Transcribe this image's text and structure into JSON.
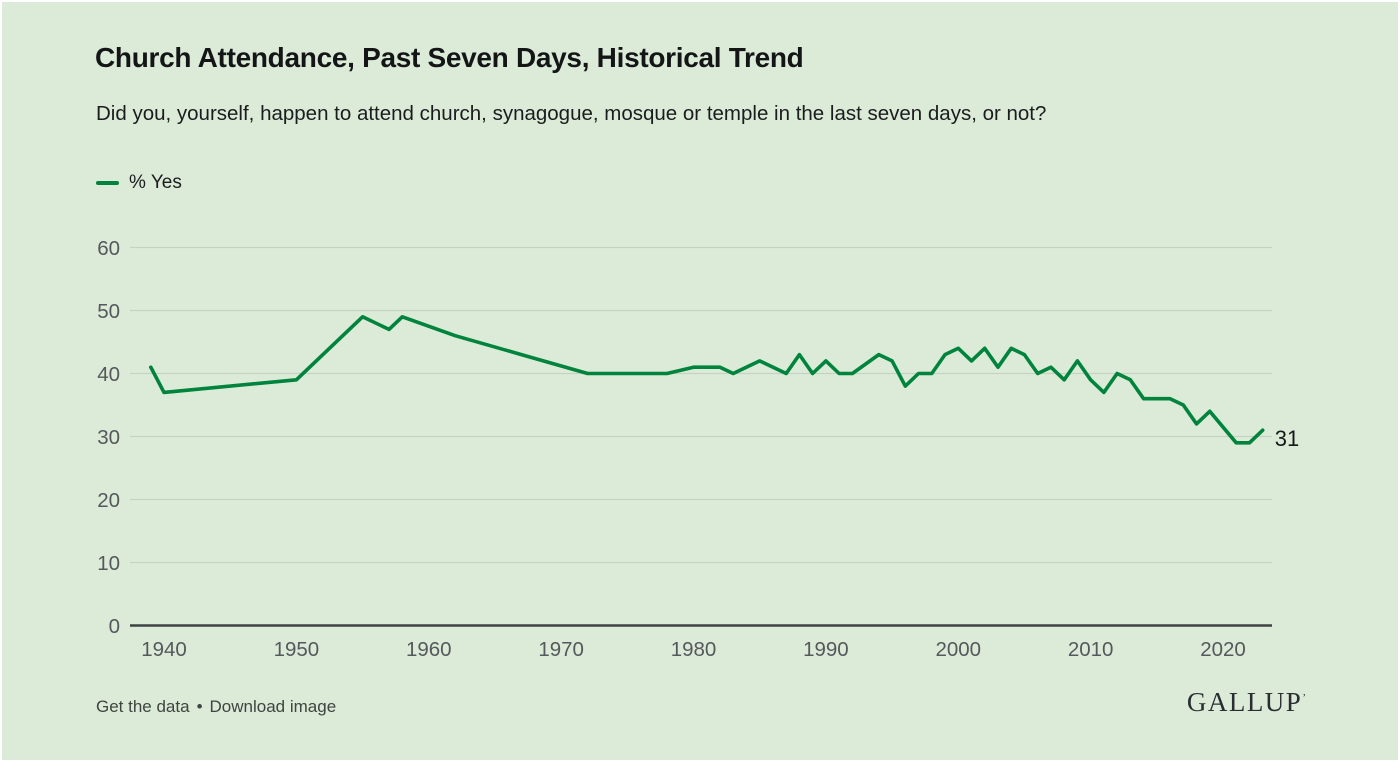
{
  "header": {
    "title": "Church Attendance, Past Seven Days, Historical Trend",
    "subtitle": "Did you, yourself, happen to attend church, synagogue, mosque or temple in the last seven days, or not?"
  },
  "chart_data": {
    "type": "line",
    "title": "Church Attendance, Past Seven Days, Historical Trend",
    "legend": [
      {
        "label": "% Yes",
        "color": "#00843d"
      }
    ],
    "legend_position": "top-left",
    "grid": "horizontal",
    "ylim": [
      0,
      60
    ],
    "y_ticks": [
      0,
      10,
      20,
      30,
      40,
      50,
      60
    ],
    "x_ticks": [
      1940,
      1950,
      1960,
      1970,
      1980,
      1990,
      2000,
      2010,
      2020
    ],
    "x_range": [
      1937.4,
      2024
    ],
    "end_label": "31",
    "series": [
      {
        "name": "% Yes",
        "color": "#00843d",
        "points": [
          [
            1939,
            41
          ],
          [
            1940,
            37
          ],
          [
            1950,
            39
          ],
          [
            1954,
            47
          ],
          [
            1955,
            49
          ],
          [
            1957,
            47
          ],
          [
            1958,
            49
          ],
          [
            1962,
            46
          ],
          [
            1967,
            43
          ],
          [
            1972,
            40
          ],
          [
            1978,
            40
          ],
          [
            1980,
            41
          ],
          [
            1982,
            41
          ],
          [
            1983,
            40
          ],
          [
            1985,
            42
          ],
          [
            1987,
            40
          ],
          [
            1988,
            43
          ],
          [
            1989,
            40
          ],
          [
            1990,
            42
          ],
          [
            1991,
            40
          ],
          [
            1992,
            40
          ],
          [
            1994,
            43
          ],
          [
            1995,
            42
          ],
          [
            1996,
            38
          ],
          [
            1997,
            40
          ],
          [
            1998,
            40
          ],
          [
            1999,
            43
          ],
          [
            2000,
            44
          ],
          [
            2001,
            42
          ],
          [
            2002,
            44
          ],
          [
            2003,
            41
          ],
          [
            2004,
            44
          ],
          [
            2005,
            43
          ],
          [
            2006,
            40
          ],
          [
            2007,
            41
          ],
          [
            2008,
            39
          ],
          [
            2009,
            42
          ],
          [
            2010,
            39
          ],
          [
            2011,
            37
          ],
          [
            2012,
            40
          ],
          [
            2013,
            39
          ],
          [
            2014,
            36
          ],
          [
            2015,
            36
          ],
          [
            2016,
            36
          ],
          [
            2017,
            35
          ],
          [
            2018,
            32
          ],
          [
            2019,
            34
          ],
          [
            2021,
            29
          ],
          [
            2022,
            29
          ],
          [
            2023,
            31
          ]
        ]
      }
    ]
  },
  "footer": {
    "link1": "Get the data",
    "separator": "•",
    "link2": "Download image",
    "brand": "GALLUP",
    "brand_mark": "ʼ"
  },
  "colors": {
    "background": "#dcebd8",
    "frame": "#ffffff",
    "line": "#00843d",
    "grid_line": "#c6d1c3",
    "axis_line": "#3f4245",
    "tick_label": "#55585c",
    "text": "#17181a",
    "footer_text": "#3e4440"
  }
}
